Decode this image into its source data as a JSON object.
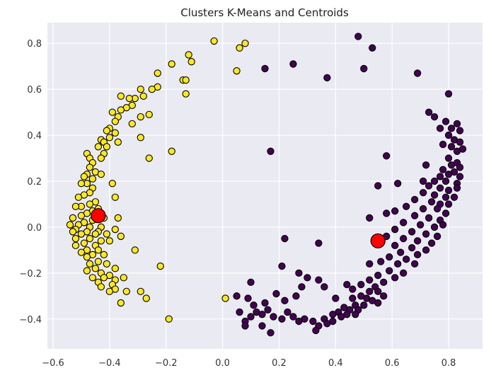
{
  "chart_data": {
    "type": "scatter",
    "title": "Clusters K-Means and Centroids",
    "xlabel": "",
    "ylabel": "",
    "xlim": [
      -0.62,
      0.92
    ],
    "ylim": [
      -0.53,
      0.89
    ],
    "xticks": [
      -0.6,
      -0.4,
      -0.2,
      0.0,
      0.2,
      0.4,
      0.6,
      0.8
    ],
    "xtick_labels": [
      "−0.6",
      "−0.4",
      "−0.2",
      "0.0",
      "0.2",
      "0.4",
      "0.6",
      "0.8"
    ],
    "yticks": [
      -0.4,
      -0.2,
      0.0,
      0.2,
      0.4,
      0.6,
      0.8
    ],
    "ytick_labels": [
      "−0.4",
      "−0.2",
      "0.0",
      "0.2",
      "0.4",
      "0.6",
      "0.8"
    ],
    "grid": true,
    "legend": "none",
    "colors": {
      "background": "#eaeaf2",
      "grid": "#ffffff",
      "cluster_0": "#440154",
      "cluster_1": "#fde725",
      "centroid": "#ff0000",
      "edge": "#000000"
    },
    "series": [
      {
        "cluster": 1,
        "points": [
          [
            -0.03,
            0.81
          ],
          [
            0.06,
            0.78
          ],
          [
            0.08,
            0.8
          ],
          [
            -0.12,
            0.75
          ],
          [
            -0.11,
            0.72
          ],
          [
            -0.18,
            0.71
          ],
          [
            0.05,
            0.68
          ],
          [
            -0.23,
            0.67
          ],
          [
            -0.14,
            0.64
          ],
          [
            -0.13,
            0.64
          ],
          [
            -0.23,
            0.61
          ],
          [
            -0.25,
            0.6
          ],
          [
            -0.29,
            0.6
          ],
          [
            -0.13,
            0.58
          ],
          [
            -0.28,
            0.57
          ],
          [
            -0.31,
            0.56
          ],
          [
            -0.33,
            0.56
          ],
          [
            -0.36,
            0.57
          ],
          [
            -0.32,
            0.53
          ],
          [
            -0.34,
            0.52
          ],
          [
            -0.36,
            0.51
          ],
          [
            -0.39,
            0.5
          ],
          [
            -0.26,
            0.49
          ],
          [
            -0.29,
            0.48
          ],
          [
            -0.37,
            0.48
          ],
          [
            -0.38,
            0.46
          ],
          [
            -0.32,
            0.45
          ],
          [
            -0.4,
            0.43
          ],
          [
            -0.41,
            0.42
          ],
          [
            -0.38,
            0.41
          ],
          [
            -0.4,
            0.39
          ],
          [
            -0.29,
            0.39
          ],
          [
            -0.43,
            0.38
          ],
          [
            -0.42,
            0.37
          ],
          [
            -0.37,
            0.37
          ],
          [
            -0.44,
            0.35
          ],
          [
            -0.41,
            0.35
          ],
          [
            -0.42,
            0.32
          ],
          [
            -0.48,
            0.32
          ],
          [
            -0.18,
            0.33
          ],
          [
            -0.47,
            0.3
          ],
          [
            -0.43,
            0.3
          ],
          [
            -0.26,
            0.3
          ],
          [
            -0.46,
            0.28
          ],
          [
            -0.47,
            0.26
          ],
          [
            -0.45,
            0.24
          ],
          [
            -0.43,
            0.23
          ],
          [
            -0.48,
            0.23
          ],
          [
            -0.49,
            0.22
          ],
          [
            -0.46,
            0.21
          ],
          [
            -0.48,
            0.19
          ],
          [
            -0.39,
            0.19
          ],
          [
            -0.5,
            0.19
          ],
          [
            -0.46,
            0.17
          ],
          [
            -0.47,
            0.15
          ],
          [
            -0.49,
            0.14
          ],
          [
            -0.51,
            0.13
          ],
          [
            -0.38,
            0.13
          ],
          [
            -0.45,
            0.11
          ],
          [
            -0.47,
            0.1
          ],
          [
            -0.5,
            0.09
          ],
          [
            -0.52,
            0.09
          ],
          [
            -0.44,
            0.08
          ],
          [
            -0.46,
            0.07
          ],
          [
            -0.48,
            0.06
          ],
          [
            -0.5,
            0.05
          ],
          [
            -0.53,
            0.04
          ],
          [
            -0.42,
            0.04
          ],
          [
            -0.37,
            0.04
          ],
          [
            -0.46,
            0.03
          ],
          [
            -0.49,
            0.02
          ],
          [
            -0.51,
            0.01
          ],
          [
            -0.54,
            0.01
          ],
          [
            -0.43,
            0.0
          ],
          [
            -0.47,
            0.0
          ],
          [
            -0.52,
            -0.01
          ],
          [
            -0.44,
            -0.02
          ],
          [
            -0.48,
            -0.02
          ],
          [
            -0.53,
            -0.02
          ],
          [
            -0.41,
            -0.03
          ],
          [
            -0.45,
            -0.03
          ],
          [
            -0.5,
            -0.03
          ],
          [
            -0.38,
            -0.01
          ],
          [
            -0.47,
            -0.05
          ],
          [
            -0.52,
            -0.05
          ],
          [
            -0.43,
            -0.06
          ],
          [
            -0.36,
            -0.04
          ],
          [
            -0.49,
            -0.07
          ],
          [
            -0.45,
            -0.08
          ],
          [
            -0.52,
            -0.08
          ],
          [
            -0.4,
            -0.06
          ],
          [
            -0.48,
            -0.1
          ],
          [
            -0.44,
            -0.1
          ],
          [
            -0.5,
            -0.11
          ],
          [
            -0.46,
            -0.12
          ],
          [
            -0.42,
            -0.12
          ],
          [
            -0.48,
            -0.13
          ],
          [
            -0.44,
            -0.15
          ],
          [
            -0.47,
            -0.16
          ],
          [
            -0.41,
            -0.16
          ],
          [
            -0.45,
            -0.18
          ],
          [
            -0.38,
            -0.18
          ],
          [
            -0.48,
            -0.19
          ],
          [
            -0.43,
            -0.2
          ],
          [
            -0.4,
            -0.21
          ],
          [
            -0.46,
            -0.22
          ],
          [
            -0.42,
            -0.22
          ],
          [
            -0.38,
            -0.23
          ],
          [
            -0.44,
            -0.24
          ],
          [
            -0.39,
            -0.25
          ],
          [
            -0.35,
            -0.22
          ],
          [
            -0.43,
            -0.26
          ],
          [
            -0.38,
            -0.27
          ],
          [
            -0.4,
            -0.28
          ],
          [
            -0.34,
            -0.28
          ],
          [
            -0.29,
            -0.28
          ],
          [
            -0.27,
            -0.31
          ],
          [
            -0.36,
            -0.33
          ],
          [
            -0.31,
            -0.1
          ],
          [
            -0.22,
            -0.17
          ],
          [
            -0.19,
            -0.4
          ],
          [
            0.01,
            -0.31
          ]
        ]
      },
      {
        "cluster": 0,
        "points": [
          [
            0.48,
            0.83
          ],
          [
            0.53,
            0.78
          ],
          [
            0.5,
            0.69
          ],
          [
            0.25,
            0.71
          ],
          [
            0.15,
            0.69
          ],
          [
            0.69,
            0.67
          ],
          [
            0.37,
            0.65
          ],
          [
            0.8,
            0.58
          ],
          [
            0.73,
            0.5
          ],
          [
            0.75,
            0.48
          ],
          [
            0.79,
            0.46
          ],
          [
            0.83,
            0.45
          ],
          [
            0.77,
            0.43
          ],
          [
            0.81,
            0.43
          ],
          [
            0.84,
            0.42
          ],
          [
            0.8,
            0.4
          ],
          [
            0.82,
            0.38
          ],
          [
            0.84,
            0.37
          ],
          [
            0.78,
            0.36
          ],
          [
            0.81,
            0.35
          ],
          [
            0.85,
            0.34
          ],
          [
            0.83,
            0.33
          ],
          [
            0.17,
            0.33
          ],
          [
            0.58,
            0.31
          ],
          [
            0.8,
            0.3
          ],
          [
            0.83,
            0.28
          ],
          [
            0.81,
            0.27
          ],
          [
            0.84,
            0.26
          ],
          [
            0.72,
            0.27
          ],
          [
            0.78,
            0.25
          ],
          [
            0.82,
            0.24
          ],
          [
            0.8,
            0.23
          ],
          [
            0.77,
            0.22
          ],
          [
            0.84,
            0.22
          ],
          [
            0.71,
            0.2
          ],
          [
            0.75,
            0.2
          ],
          [
            0.79,
            0.2
          ],
          [
            0.83,
            0.19
          ],
          [
            0.62,
            0.19
          ],
          [
            0.73,
            0.18
          ],
          [
            0.77,
            0.17
          ],
          [
            0.8,
            0.16
          ],
          [
            0.83,
            0.17
          ],
          [
            0.55,
            0.18
          ],
          [
            0.71,
            0.15
          ],
          [
            0.75,
            0.14
          ],
          [
            0.79,
            0.13
          ],
          [
            0.82,
            0.13
          ],
          [
            0.68,
            0.12
          ],
          [
            0.74,
            0.11
          ],
          [
            0.77,
            0.1
          ],
          [
            0.8,
            0.1
          ],
          [
            0.65,
            0.09
          ],
          [
            0.71,
            0.08
          ],
          [
            0.76,
            0.08
          ],
          [
            0.79,
            0.06
          ],
          [
            0.61,
            0.07
          ],
          [
            0.68,
            0.05
          ],
          [
            0.73,
            0.04
          ],
          [
            0.77,
            0.03
          ],
          [
            0.58,
            0.06
          ],
          [
            0.64,
            0.02
          ],
          [
            0.7,
            0.01
          ],
          [
            0.75,
            0.0
          ],
          [
            0.78,
            0.01
          ],
          [
            0.52,
            0.04
          ],
          [
            0.61,
            -0.01
          ],
          [
            0.67,
            -0.02
          ],
          [
            0.72,
            -0.03
          ],
          [
            0.76,
            -0.04
          ],
          [
            0.58,
            -0.04
          ],
          [
            0.64,
            -0.05
          ],
          [
            0.69,
            -0.06
          ],
          [
            0.74,
            -0.07
          ],
          [
            0.55,
            -0.07
          ],
          [
            0.61,
            -0.08
          ],
          [
            0.67,
            -0.09
          ],
          [
            0.72,
            -0.1
          ],
          [
            0.63,
            -0.11
          ],
          [
            0.69,
            -0.12
          ],
          [
            0.59,
            -0.13
          ],
          [
            0.65,
            -0.14
          ],
          [
            0.56,
            -0.15
          ],
          [
            0.62,
            -0.16
          ],
          [
            0.52,
            -0.16
          ],
          [
            0.68,
            -0.16
          ],
          [
            0.59,
            -0.19
          ],
          [
            0.64,
            -0.2
          ],
          [
            0.55,
            -0.21
          ],
          [
            0.61,
            -0.22
          ],
          [
            0.52,
            -0.23
          ],
          [
            0.57,
            -0.24
          ],
          [
            0.49,
            -0.25
          ],
          [
            0.54,
            -0.26
          ],
          [
            0.46,
            -0.27
          ],
          [
            0.52,
            -0.28
          ],
          [
            0.55,
            -0.28
          ],
          [
            0.57,
            -0.3
          ],
          [
            0.49,
            -0.3
          ],
          [
            0.51,
            -0.31
          ],
          [
            0.46,
            -0.31
          ],
          [
            0.53,
            -0.32
          ],
          [
            0.55,
            -0.33
          ],
          [
            0.5,
            -0.34
          ],
          [
            0.47,
            -0.34
          ],
          [
            0.43,
            -0.35
          ],
          [
            0.45,
            -0.36
          ],
          [
            0.48,
            -0.36
          ],
          [
            0.41,
            -0.37
          ],
          [
            0.44,
            -0.38
          ],
          [
            0.47,
            -0.38
          ],
          [
            0.39,
            -0.38
          ],
          [
            0.42,
            -0.39
          ],
          [
            0.36,
            -0.4
          ],
          [
            0.39,
            -0.41
          ],
          [
            0.37,
            -0.42
          ],
          [
            0.34,
            -0.43
          ],
          [
            0.32,
            -0.41
          ],
          [
            0.29,
            -0.4
          ],
          [
            0.27,
            -0.41
          ],
          [
            0.25,
            -0.39
          ],
          [
            0.23,
            -0.37
          ],
          [
            0.21,
            -0.4
          ],
          [
            0.18,
            -0.39
          ],
          [
            0.16,
            -0.36
          ],
          [
            0.14,
            -0.38
          ],
          [
            0.12,
            -0.37
          ],
          [
            0.1,
            -0.39
          ],
          [
            0.08,
            -0.41
          ],
          [
            0.06,
            -0.37
          ],
          [
            0.05,
            -0.3
          ],
          [
            0.09,
            -0.31
          ],
          [
            0.11,
            -0.34
          ],
          [
            0.15,
            -0.33
          ],
          [
            0.19,
            -0.29
          ],
          [
            0.22,
            -0.32
          ],
          [
            0.26,
            -0.3
          ],
          [
            0.28,
            -0.26
          ],
          [
            0.3,
            -0.22
          ],
          [
            0.27,
            -0.2
          ],
          [
            0.34,
            -0.23
          ],
          [
            0.36,
            -0.26
          ],
          [
            0.4,
            -0.31
          ],
          [
            0.44,
            -0.25
          ],
          [
            0.21,
            -0.17
          ],
          [
            0.22,
            -0.05
          ],
          [
            0.34,
            -0.07
          ],
          [
            0.1,
            -0.24
          ],
          [
            0.14,
            -0.43
          ],
          [
            0.17,
            -0.46
          ],
          [
            0.33,
            -0.45
          ],
          [
            0.08,
            -0.43
          ]
        ]
      }
    ],
    "centroids": [
      [
        -0.44,
        0.05
      ],
      [
        0.55,
        -0.06
      ]
    ]
  }
}
